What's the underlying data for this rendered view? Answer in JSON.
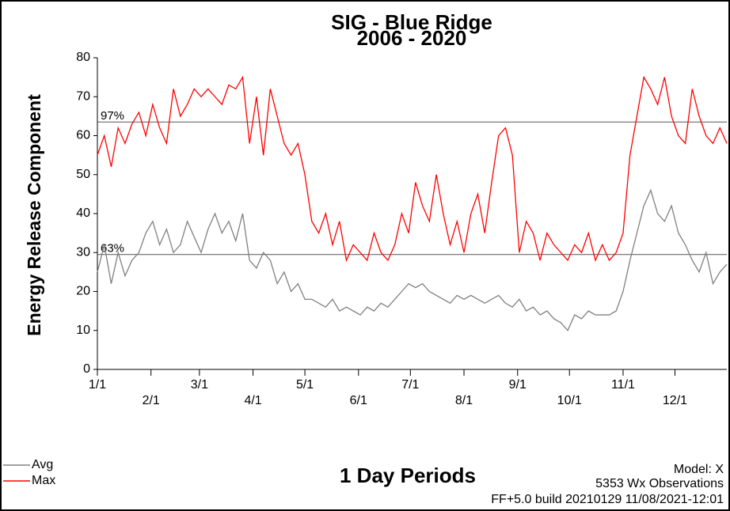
{
  "chart_data": {
    "type": "line",
    "title": "SIG - Blue Ridge",
    "subtitle": "2006 - 2020",
    "y_label": "Energy Release Component",
    "x_label": "1 Day Periods",
    "annotations": [
      "Model: X",
      "5353 Wx Observations",
      "FF+5.0 build 20210129 11/08/2021-12:01"
    ],
    "xlim": [
      1,
      365
    ],
    "ylim": [
      0,
      80
    ],
    "yticks": [
      0,
      10,
      20,
      30,
      40,
      50,
      60,
      70,
      80
    ],
    "xticks": [
      {
        "value": 1,
        "label": "1/1"
      },
      {
        "value": 32,
        "label": "2/1"
      },
      {
        "value": 60,
        "label": "3/1"
      },
      {
        "value": 91,
        "label": "4/1"
      },
      {
        "value": 121,
        "label": "5/1"
      },
      {
        "value": 152,
        "label": "6/1"
      },
      {
        "value": 182,
        "label": "7/1"
      },
      {
        "value": 213,
        "label": "8/1"
      },
      {
        "value": 244,
        "label": "9/1"
      },
      {
        "value": 274,
        "label": "10/1"
      },
      {
        "value": 305,
        "label": "11/1"
      },
      {
        "value": 335,
        "label": "12/1"
      }
    ],
    "percentile_lines": [
      {
        "value": 63.5,
        "label": "97%"
      },
      {
        "value": 29.5,
        "label": "63%"
      }
    ],
    "x": [
      1,
      5,
      9,
      13,
      17,
      21,
      25,
      29,
      33,
      37,
      41,
      45,
      49,
      53,
      57,
      61,
      65,
      69,
      73,
      77,
      81,
      85,
      89,
      93,
      97,
      101,
      105,
      109,
      113,
      117,
      121,
      125,
      129,
      133,
      137,
      141,
      145,
      149,
      153,
      157,
      161,
      165,
      169,
      173,
      177,
      181,
      185,
      189,
      193,
      197,
      201,
      205,
      209,
      213,
      217,
      221,
      225,
      229,
      233,
      237,
      241,
      245,
      249,
      253,
      257,
      261,
      265,
      269,
      273,
      277,
      281,
      285,
      289,
      293,
      297,
      301,
      305,
      309,
      313,
      317,
      321,
      325,
      329,
      333,
      337,
      341,
      345,
      349,
      353,
      357,
      361,
      365
    ],
    "series": [
      {
        "name": "Avg",
        "color": "#808080",
        "values": [
          25,
          32,
          22,
          30,
          24,
          28,
          30,
          35,
          38,
          32,
          36,
          30,
          32,
          38,
          34,
          30,
          36,
          40,
          35,
          38,
          33,
          40,
          28,
          26,
          30,
          28,
          22,
          25,
          20,
          22,
          18,
          18,
          17,
          16,
          18,
          15,
          16,
          15,
          14,
          16,
          15,
          17,
          16,
          18,
          20,
          22,
          21,
          22,
          20,
          19,
          18,
          17,
          19,
          18,
          19,
          18,
          17,
          18,
          19,
          17,
          16,
          18,
          15,
          16,
          14,
          15,
          13,
          12,
          10,
          14,
          13,
          15,
          14,
          14,
          14,
          15,
          20,
          28,
          35,
          42,
          46,
          40,
          38,
          42,
          35,
          32,
          28,
          25,
          30,
          22,
          25,
          27
        ]
      },
      {
        "name": "Max",
        "color": "#ff0000",
        "values": [
          55,
          60,
          52,
          62,
          58,
          63,
          66,
          60,
          68,
          62,
          58,
          72,
          65,
          68,
          72,
          70,
          72,
          70,
          68,
          73,
          72,
          75,
          58,
          70,
          55,
          72,
          65,
          58,
          55,
          58,
          50,
          38,
          35,
          40,
          32,
          38,
          28,
          32,
          30,
          28,
          35,
          30,
          28,
          32,
          40,
          35,
          48,
          42,
          38,
          50,
          40,
          32,
          38,
          30,
          40,
          45,
          35,
          48,
          60,
          62,
          55,
          30,
          38,
          35,
          28,
          35,
          32,
          30,
          28,
          32,
          30,
          35,
          28,
          32,
          28,
          30,
          35,
          55,
          65,
          75,
          72,
          68,
          75,
          65,
          60,
          58,
          72,
          65,
          60,
          58,
          62,
          58
        ]
      }
    ]
  }
}
